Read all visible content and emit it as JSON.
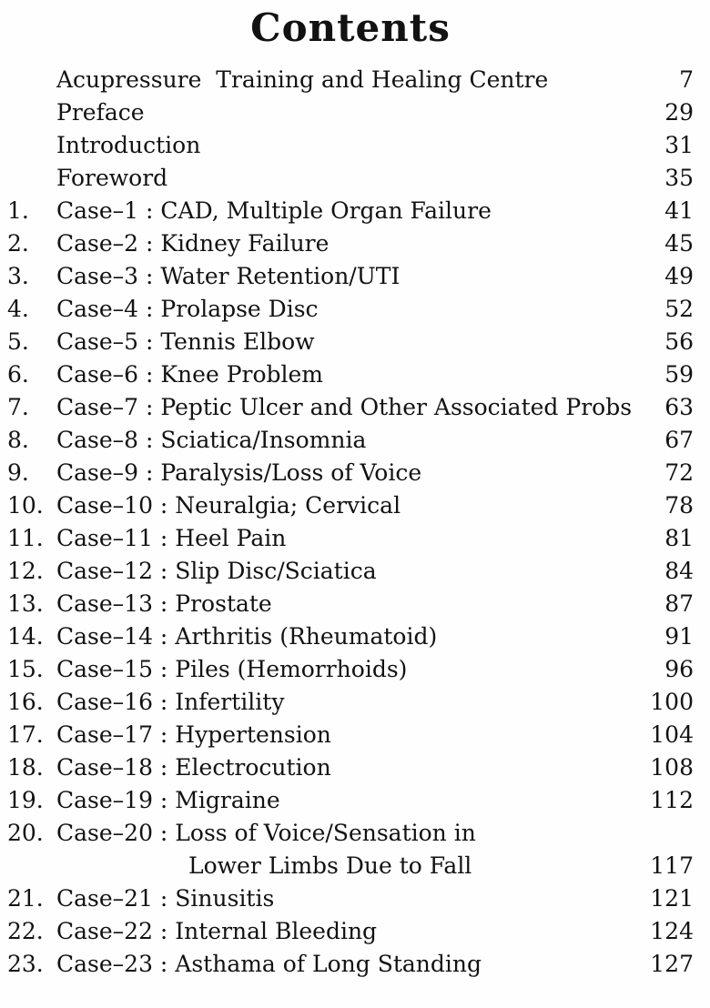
{
  "page": {
    "title": "Contents",
    "front_matter": [
      {
        "label": "Acupressure  Training and Healing Centre",
        "page": "7"
      },
      {
        "label": "Preface",
        "page": "29"
      },
      {
        "label": "Introduction",
        "page": "31"
      },
      {
        "label": "Foreword",
        "page": "35"
      }
    ],
    "entries": [
      {
        "num": "1.",
        "label": "Case–1 : CAD, Multiple Organ Failure",
        "page": "41"
      },
      {
        "num": "2.",
        "label": "Case–2 : Kidney Failure",
        "page": "45"
      },
      {
        "num": "3.",
        "label": "Case–3 : Water Retention/UTI",
        "page": "49"
      },
      {
        "num": "4.",
        "label": "Case–4 : Prolapse Disc",
        "page": "52"
      },
      {
        "num": "5.",
        "label": "Case–5 : Tennis Elbow",
        "page": "56"
      },
      {
        "num": "6.",
        "label": "Case–6 : Knee Problem",
        "page": "59"
      },
      {
        "num": "7.",
        "label": "Case–7 : Peptic Ulcer and Other Associated Probs",
        "page": "63"
      },
      {
        "num": "8.",
        "label": "Case–8 : Sciatica/Insomnia",
        "page": "67"
      },
      {
        "num": "9.",
        "label": "Case–9 : Paralysis/Loss of Voice",
        "page": "72"
      },
      {
        "num": "10.",
        "label": "Case–10 : Neuralgia; Cervical",
        "page": "78"
      },
      {
        "num": "11.",
        "label": "Case–11 : Heel Pain",
        "page": "81"
      },
      {
        "num": "12.",
        "label": "Case–12 : Slip Disc/Sciatica",
        "page": "84"
      },
      {
        "num": "13.",
        "label": "Case–13 : Prostate",
        "page": "87"
      },
      {
        "num": "14.",
        "label": "Case–14 : Arthritis (Rheumatoid)",
        "page": "91"
      },
      {
        "num": "15.",
        "label": "Case–15 : Piles (Hemorrhoids)",
        "page": "96"
      },
      {
        "num": "16.",
        "label": "Case–16 : Infertility",
        "page": "100"
      },
      {
        "num": "17.",
        "label": "Case–17 : Hypertension",
        "page": "104"
      },
      {
        "num": "18.",
        "label": "Case–18 : Electrocution",
        "page": "108"
      },
      {
        "num": "19.",
        "label": "Case–19 : Migraine",
        "page": "112"
      },
      {
        "num": "20.",
        "label": "Case–20 : Loss of Voice/Sensation in",
        "label2": "Lower Limbs Due to Fall",
        "page": "117"
      },
      {
        "num": "21.",
        "label": "Case–21 : Sinusitis",
        "page": "121"
      },
      {
        "num": "22.",
        "label": "Case–22 : Internal Bleeding",
        "page": "124"
      },
      {
        "num": "23.",
        "label": "Case–23 : Asthama of Long Standing",
        "page": "127"
      }
    ],
    "colors": {
      "ink": "#121212",
      "paper": "#fefefe"
    }
  }
}
